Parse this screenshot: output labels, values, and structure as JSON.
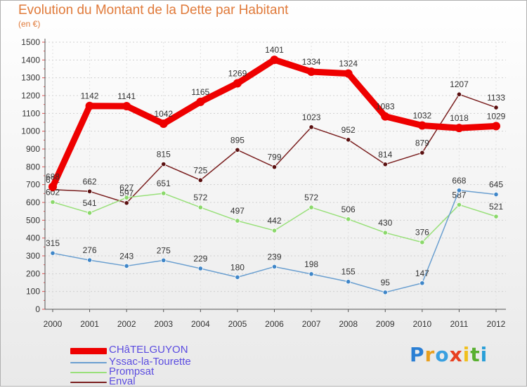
{
  "title": "Evolution du Montant de la Dette par Habitant",
  "subtitle": "(en €)",
  "logo_text": "Proxiti",
  "chart_data": {
    "type": "line",
    "title": "Evolution du Montant de la Dette par Habitant",
    "subtitle": "(en €)",
    "x": [
      "2000",
      "2001",
      "2002",
      "2003",
      "2004",
      "2005",
      "2006",
      "2007",
      "2008",
      "2009",
      "2010",
      "2011",
      "2012"
    ],
    "ylim": [
      0,
      1500
    ],
    "yticks": [
      0,
      100,
      200,
      300,
      400,
      500,
      600,
      700,
      800,
      900,
      1000,
      1100,
      1200,
      1300,
      1400,
      1500
    ],
    "grid": true,
    "legend_position": "bottom-left",
    "series": [
      {
        "name": "Enval",
        "color": "#7a1f1f",
        "marker": "#5a1010",
        "values": [
          672,
          662,
          597,
          815,
          725,
          895,
          799,
          1023,
          952,
          814,
          879,
          1207,
          1133
        ]
      },
      {
        "name": "Prompsat",
        "color": "#99e07a",
        "marker": "#8ad86a",
        "values": [
          602,
          541,
          627,
          651,
          572,
          497,
          442,
          572,
          506,
          430,
          376,
          587,
          521
        ]
      },
      {
        "name": "Yssac-la-Tourette",
        "color": "#6a9fd0",
        "marker": "#3f86c8",
        "values": [
          315,
          276,
          243,
          275,
          229,
          180,
          239,
          198,
          155,
          95,
          147,
          668,
          645
        ]
      },
      {
        "name": "CHâTELGUYON",
        "color": "#ee0000",
        "marker": "#ee0000",
        "values": [
          688,
          1142,
          1141,
          1042,
          1165,
          1269,
          1401,
          1334,
          1324,
          1083,
          1032,
          1018,
          1029
        ]
      }
    ]
  }
}
